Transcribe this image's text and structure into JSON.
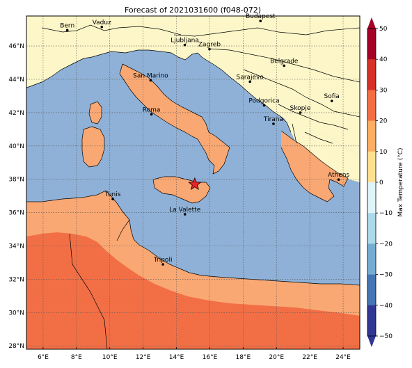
{
  "title": "Forecast of 2021031600 (f048-072)",
  "colorbar": {
    "label": "Max Temperature (°C)",
    "ticks": [
      "50",
      "40",
      "30",
      "20",
      "10",
      "0",
      "−10",
      "−20",
      "−30",
      "−40",
      "−50"
    ],
    "colors": [
      "#a50026",
      "#d73027",
      "#f46d43",
      "#fdae61",
      "#fee090",
      "#e0f3f8",
      "#abd9e9",
      "#74add1",
      "#4575b4",
      "#313695"
    ]
  },
  "axes": {
    "lon_ticks": [
      "6°E",
      "8°E",
      "10°E",
      "12°E",
      "14°E",
      "16°E",
      "18°E",
      "20°E",
      "22°E",
      "24°E"
    ],
    "lat_ticks": [
      "46°N",
      "44°N",
      "42°N",
      "40°N",
      "38°N",
      "36°N",
      "34°N",
      "32°N",
      "30°N",
      "28°N"
    ]
  },
  "colors": {
    "sea": "#8fb1d7",
    "band_0_10": "#fdf6c8",
    "band_10_20": "#f9a874",
    "band_20_30": "#f26f46",
    "border": "#000000",
    "marker": "#e8242b"
  },
  "cities": [
    {
      "name": "Bern",
      "lon": 7.45,
      "lat": 46.95
    },
    {
      "name": "Vaduz",
      "lon": 9.52,
      "lat": 47.14
    },
    {
      "name": "Budapest",
      "lon": 19.04,
      "lat": 47.5
    },
    {
      "name": "Ljubljana",
      "lon": 14.5,
      "lat": 46.06
    },
    {
      "name": "Zagreb",
      "lon": 15.98,
      "lat": 45.81
    },
    {
      "name": "Belgrade",
      "lon": 20.46,
      "lat": 44.82
    },
    {
      "name": "San Marino",
      "lon": 12.45,
      "lat": 43.94
    },
    {
      "name": "Sarajevo",
      "lon": 18.41,
      "lat": 43.86
    },
    {
      "name": "Sofia",
      "lon": 23.32,
      "lat": 42.7
    },
    {
      "name": "Podgorica",
      "lon": 19.26,
      "lat": 42.44
    },
    {
      "name": "Skopje",
      "lon": 21.43,
      "lat": 42.0
    },
    {
      "name": "Roma",
      "lon": 12.5,
      "lat": 41.9
    },
    {
      "name": "Tirana",
      "lon": 19.82,
      "lat": 41.33
    },
    {
      "name": "Athens",
      "lon": 23.73,
      "lat": 37.98
    },
    {
      "name": "Tunis",
      "lon": 10.18,
      "lat": 36.81
    },
    {
      "name": "La Valette",
      "lon": 14.51,
      "lat": 35.9
    },
    {
      "name": "Tripoli",
      "lon": 13.19,
      "lat": 32.89
    }
  ],
  "marker": {
    "lon": 15.1,
    "lat": 37.7
  }
}
